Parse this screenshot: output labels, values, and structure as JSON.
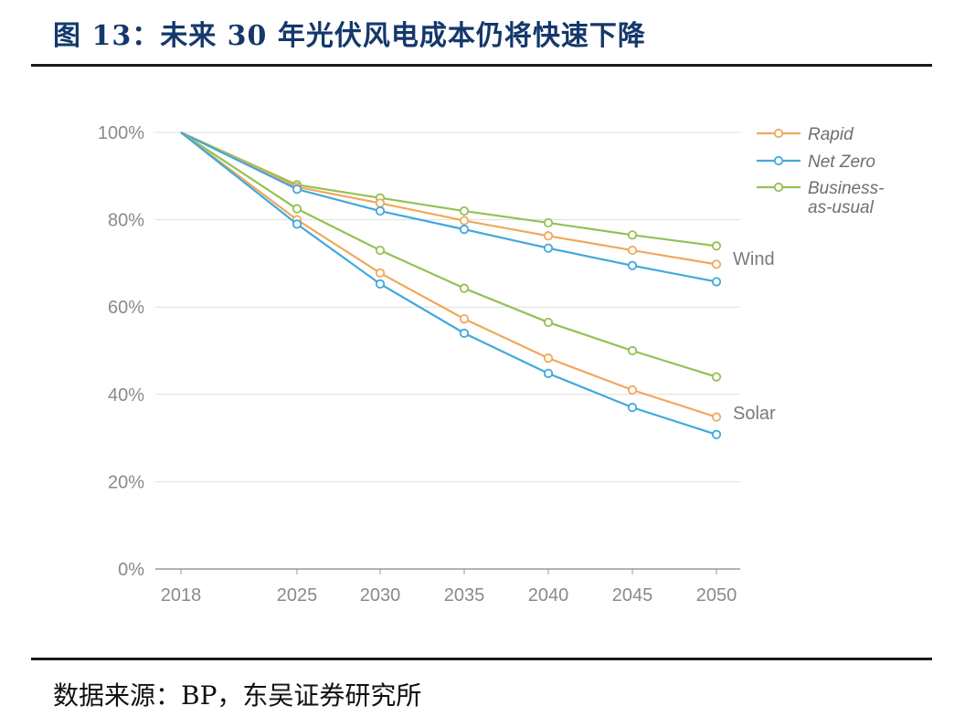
{
  "title": "图 13：未来 30 年光伏风电成本仍将快速下降",
  "source": "数据来源：BP，东吴证券研究所",
  "chart_data": {
    "type": "line",
    "x": [
      "2018",
      "2025",
      "2030",
      "2035",
      "2040",
      "2045",
      "2050"
    ],
    "y_ticks": [
      "0%",
      "20%",
      "40%",
      "60%",
      "80%",
      "100%"
    ],
    "ylim": [
      0,
      100
    ],
    "grid": true,
    "legend_position": "top-right",
    "legend": [
      {
        "label": "Rapid",
        "color": "#f0a85a"
      },
      {
        "label": "Net Zero",
        "color": "#41a8dd"
      },
      {
        "label": "Business-",
        "label2": "as-usual",
        "color": "#93c152"
      }
    ],
    "groups": [
      {
        "label": "Wind",
        "series": [
          {
            "scenario": "Business-as-usual",
            "color": "#93c152",
            "values": [
              100,
              88,
              85,
              82,
              79.3,
              76.5,
              74
            ]
          },
          {
            "scenario": "Rapid",
            "color": "#f0a85a",
            "values": [
              100,
              87.5,
              83.8,
              79.8,
              76.3,
              73,
              69.8
            ]
          },
          {
            "scenario": "Net Zero",
            "color": "#41a8dd",
            "values": [
              100,
              87,
              82,
              77.8,
              73.5,
              69.5,
              65.8
            ]
          }
        ]
      },
      {
        "label": "Solar",
        "series": [
          {
            "scenario": "Business-as-usual",
            "color": "#93c152",
            "values": [
              100,
              82.5,
              73,
              64.3,
              56.5,
              50,
              44
            ]
          },
          {
            "scenario": "Rapid",
            "color": "#f0a85a",
            "values": [
              100,
              80,
              67.8,
              57.3,
              48.3,
              41,
              34.8
            ]
          },
          {
            "scenario": "Net Zero",
            "color": "#41a8dd",
            "values": [
              100,
              79,
              65.3,
              54,
              44.8,
              37,
              30.8
            ]
          }
        ]
      }
    ]
  }
}
